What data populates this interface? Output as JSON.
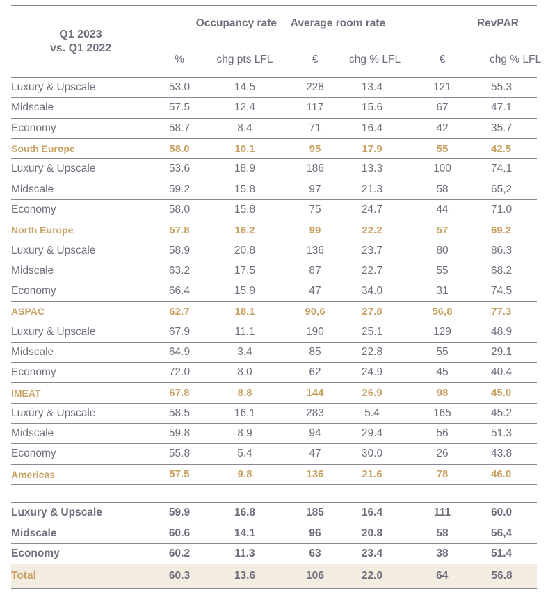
{
  "header": {
    "corner_line1": "Q1 2023",
    "corner_line2": "vs. Q1 2022",
    "groups": [
      "Occupancy rate",
      "Average room rate",
      "RevPAR"
    ],
    "subheaders": [
      "%",
      "chg pts LFL",
      "€",
      "chg % LFL",
      "€",
      "chg % LFL"
    ]
  },
  "rows": [
    {
      "label": "Luxury & Upscale",
      "values": [
        "53.0",
        "14.5",
        "228",
        "13.4",
        "121",
        "55.3"
      ]
    },
    {
      "label": "Midscale",
      "values": [
        "57.5",
        "12.4",
        "117",
        "15.6",
        "67",
        "47.1"
      ]
    },
    {
      "label": "Economy",
      "values": [
        "58.7",
        "8.4",
        "71",
        "16.4",
        "42",
        "35.7"
      ]
    },
    {
      "label": "South Europe",
      "values": [
        "58.0",
        "10.1",
        "95",
        "17.9",
        "55",
        "42.5"
      ]
    },
    {
      "label": "Luxury & Upscale",
      "values": [
        "53.6",
        "18.9",
        "186",
        "13.3",
        "100",
        "74.1"
      ]
    },
    {
      "label": "Midscale",
      "values": [
        "59.2",
        "15.8",
        "97",
        "21.3",
        "58",
        "65,2"
      ]
    },
    {
      "label": "Economy",
      "values": [
        "58.0",
        "15.8",
        "75",
        "24.7",
        "44",
        "71.0"
      ]
    },
    {
      "label": "North Europe",
      "values": [
        "57.8",
        "16.2",
        "99",
        "22.2",
        "57",
        "69.2"
      ]
    },
    {
      "label": "Luxury & Upscale",
      "values": [
        "58.9",
        "20.8",
        "136",
        "23.7",
        "80",
        "86.3"
      ]
    },
    {
      "label": "Midscale",
      "values": [
        "63.2",
        "17.5",
        "87",
        "22.7",
        "55",
        "68.2"
      ]
    },
    {
      "label": "Economy",
      "values": [
        "66.4",
        "15.9",
        "47",
        "34.0",
        "31",
        "74.5"
      ]
    },
    {
      "label": "ASPAC",
      "values": [
        "62.7",
        "18.1",
        "90,6",
        "27.8",
        "56,8",
        "77.3"
      ]
    },
    {
      "label": "Luxury & Upscale",
      "values": [
        "67.9",
        "11.1",
        "190",
        "25.1",
        "129",
        "48.9"
      ]
    },
    {
      "label": "Midscale",
      "values": [
        "64.9",
        "3.4",
        "85",
        "22.8",
        "55",
        "29.1"
      ]
    },
    {
      "label": "Economy",
      "values": [
        "72.0",
        "8.0",
        "62",
        "24.9",
        "45",
        "40.4"
      ]
    },
    {
      "label": "IMEAT",
      "values": [
        "67.8",
        "8.8",
        "144",
        "26.9",
        "98",
        "45.0"
      ]
    },
    {
      "label": "Luxury & Upscale",
      "values": [
        "58.5",
        "16.1",
        "283",
        "5.4",
        "165",
        "45.2"
      ]
    },
    {
      "label": "Midscale",
      "values": [
        "59.8",
        "8.9",
        "94",
        "29.4",
        "56",
        "51.3"
      ]
    },
    {
      "label": "Economy",
      "values": [
        "55.8",
        "5.4",
        "47",
        "30.0",
        "26",
        "43.8"
      ]
    },
    {
      "label": "Americas",
      "values": [
        "57.5",
        "9.8",
        "136",
        "21.6",
        "78",
        "46.0"
      ]
    }
  ],
  "summary": [
    {
      "label": "Luxury & Upscale",
      "values": [
        "59.9",
        "16.8",
        "185",
        "16.4",
        "111",
        "60.0"
      ]
    },
    {
      "label": "Midscale",
      "values": [
        "60.6",
        "14.1",
        "96",
        "20.8",
        "58",
        "56,4"
      ]
    },
    {
      "label": "Economy",
      "values": [
        "60.2",
        "11.3",
        "63",
        "23.4",
        "38",
        "51.4"
      ]
    }
  ],
  "total": {
    "label": "Total",
    "values": [
      "60.3",
      "13.6",
      "106",
      "22.0",
      "64",
      "56.8"
    ]
  },
  "colors": {
    "text": "#6e6e7c",
    "region": "#c7a263",
    "total_bg": "#f3ece0",
    "rule": "#8a8a96"
  }
}
